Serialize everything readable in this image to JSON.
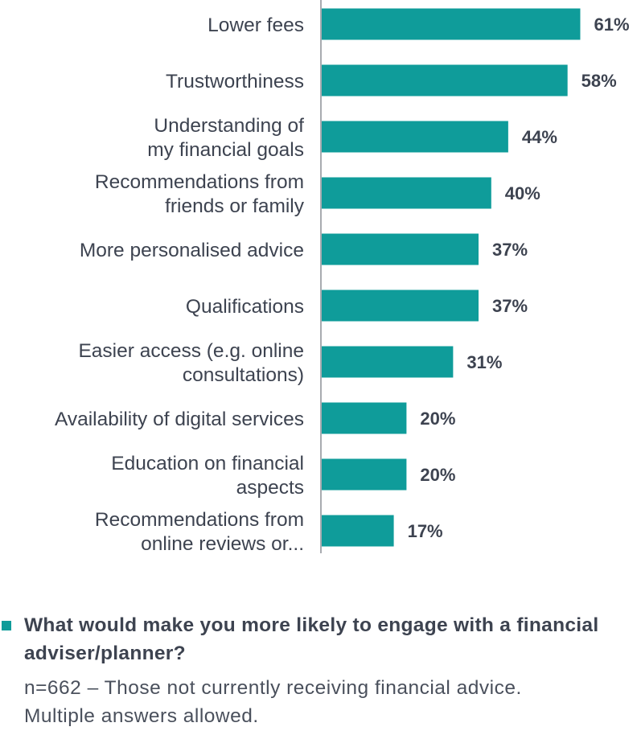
{
  "colors": {
    "bar": "#0f9c9a",
    "axis": "#8c8f96",
    "text": "#3d4350"
  },
  "chart_data": {
    "type": "bar",
    "orientation": "horizontal",
    "categories": [
      [
        "Lower fees"
      ],
      [
        "Trustworthiness"
      ],
      [
        "Understanding of",
        "my financial goals"
      ],
      [
        "Recommendations from",
        "friends or family"
      ],
      [
        "More personalised advice"
      ],
      [
        "Qualifications"
      ],
      [
        "Easier access (e.g. online",
        "consultations)"
      ],
      [
        "Availability of digital services"
      ],
      [
        "Education on financial",
        "aspects"
      ],
      [
        "Recommendations from",
        "online reviews or..."
      ]
    ],
    "values": [
      61,
      58,
      44,
      40,
      37,
      37,
      31,
      20,
      20,
      17
    ],
    "value_labels": [
      "61%",
      "58%",
      "44%",
      "40%",
      "37%",
      "37%",
      "31%",
      "20%",
      "20%",
      "17%"
    ],
    "unit": "%",
    "xlim": [
      0,
      75
    ],
    "grid": false,
    "legend_position": "bottom-left"
  },
  "legend": {
    "title": "What would make you more likely to engage with a financial adviser/planner?",
    "note": "n=662 – Those not currently receiving financial advice. Multiple answers allowed."
  }
}
